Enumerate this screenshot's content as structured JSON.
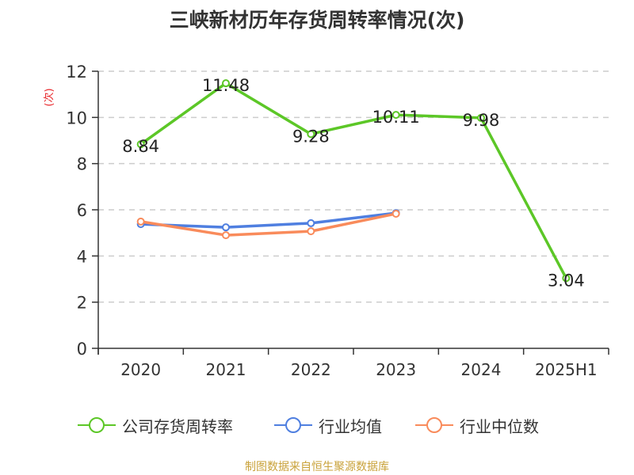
{
  "title": "三峡新材历年存货周转率情况(次)",
  "y_axis_unit": "(次)",
  "footer": "制图数据来自恒生聚源数据库",
  "legend": [
    {
      "label": "公司存货周转率",
      "color": "#5cc727"
    },
    {
      "label": "行业均值",
      "color": "#4f7fe0"
    },
    {
      "label": "行业中位数",
      "color": "#f98b5b"
    }
  ],
  "chart_data": {
    "type": "line",
    "title": "三峡新材历年存货周转率情况(次)",
    "xlabel": "",
    "ylabel": "(次)",
    "categories": [
      "2020",
      "2021",
      "2022",
      "2023",
      "2024",
      "2025H1"
    ],
    "ylim": [
      0,
      12
    ],
    "yticks": [
      0,
      2,
      4,
      6,
      8,
      10,
      12
    ],
    "grid": true,
    "legend_position": "bottom",
    "series": [
      {
        "name": "公司存货周转率",
        "color": "#5cc727",
        "values": [
          8.84,
          11.48,
          9.28,
          10.11,
          9.98,
          3.04
        ],
        "labels": [
          "8.84",
          "11.48",
          "9.28",
          "10.11",
          "9.98",
          "3.04"
        ]
      },
      {
        "name": "行业均值",
        "color": "#4f7fe0",
        "values": [
          5.38,
          5.24,
          5.42,
          5.86,
          null,
          null
        ]
      },
      {
        "name": "行业中位数",
        "color": "#f98b5b",
        "values": [
          5.49,
          4.9,
          5.07,
          5.83,
          null,
          null
        ]
      }
    ]
  }
}
